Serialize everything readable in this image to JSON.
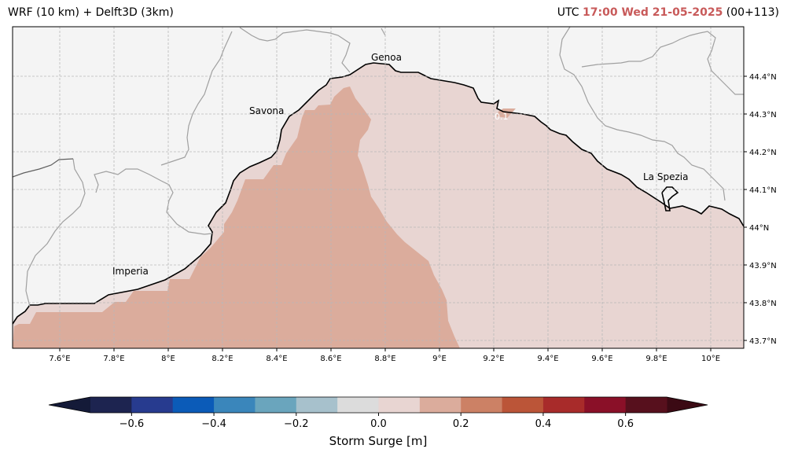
{
  "header": {
    "left_title": "WRF (10 km) + Delft3D (3km)",
    "right_prefix": "UTC",
    "right_time": "17:00 Wed 21-05-2025",
    "right_suffix": "(00+113)",
    "highlight_color": "#c85a5a"
  },
  "map": {
    "background_land": "#f4f4f4",
    "coast_color": "#000000",
    "border_color": "#a0a0a0",
    "grid_color": "#b8b8b8",
    "longitudes": [
      "7.6°E",
      "7.8°E",
      "8°E",
      "8.2°E",
      "8.4°E",
      "8.6°E",
      "8.8°E",
      "9°E",
      "9.2°E",
      "9.4°E",
      "9.6°E",
      "9.8°E",
      "10°E"
    ],
    "latitudes": [
      "44.4°N",
      "44.3°N",
      "44.2°N",
      "44.1°N",
      "44°N",
      "43.9°N",
      "43.8°N",
      "43.7°N"
    ],
    "cities": [
      "Genoa",
      "Savona",
      "Imperia",
      "La Spezia"
    ],
    "contour_label": "0.1"
  },
  "colorbar": {
    "colors": [
      "#1d2450",
      "#273b8f",
      "#0b5bb8",
      "#3a86bb",
      "#6aa5bd",
      "#a7c1cc",
      "#dcdcdc",
      "#e8d5d2",
      "#dbac9c",
      "#cc8165",
      "#bb5538",
      "#a82b2a",
      "#8a1028",
      "#57101d"
    ],
    "under_color": "#141a38",
    "over_color": "#3b0a14",
    "ticks": [
      "−0.6",
      "−0.4",
      "−0.2",
      "0.0",
      "0.2",
      "0.4",
      "0.6"
    ],
    "label": "Storm Surge [m]"
  },
  "surge": {
    "colors": [
      "#e8d5d2",
      "#dbac9c"
    ]
  }
}
